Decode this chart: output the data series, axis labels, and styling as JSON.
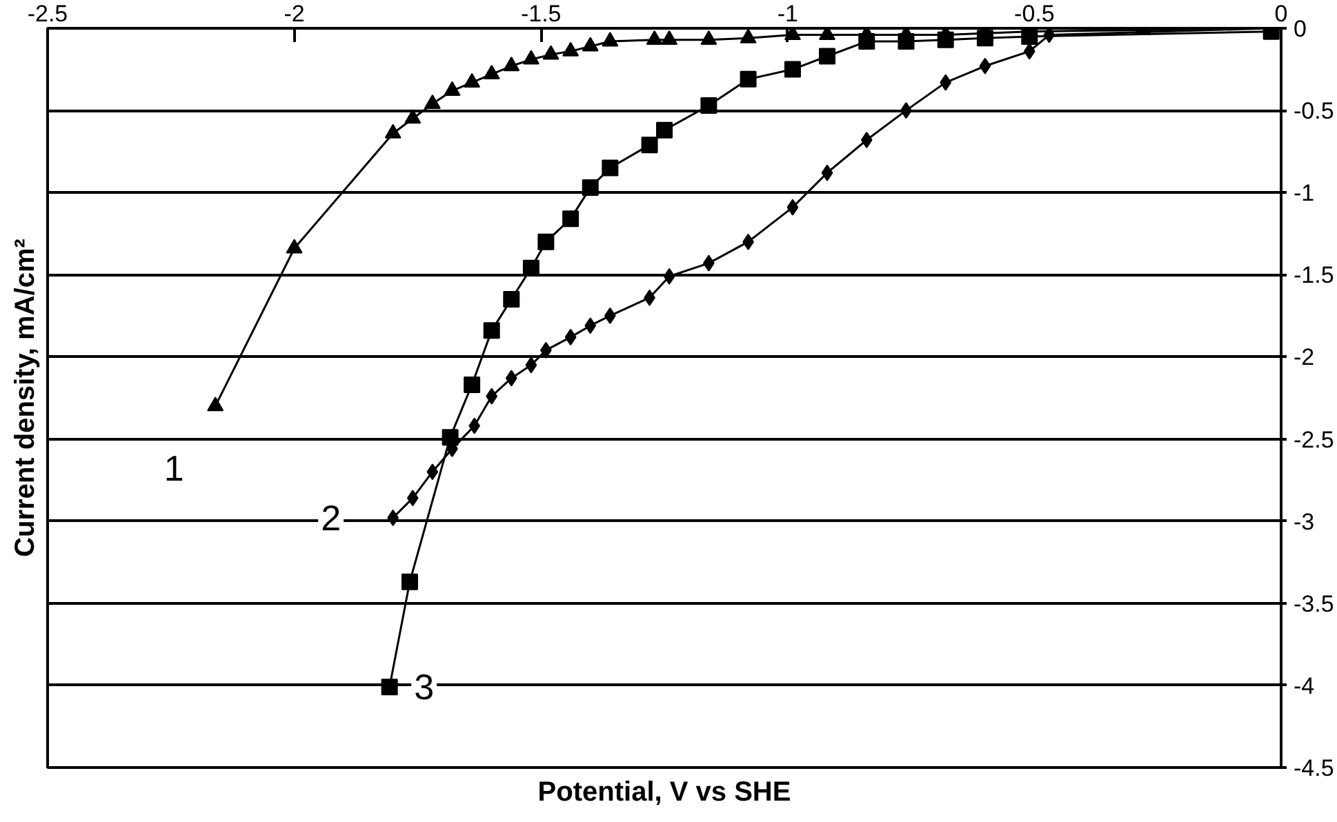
{
  "chart_data": {
    "type": "line",
    "xlabel": "Potential, V vs SHE",
    "ylabel": "Current density, mA/cm²",
    "xlim": [
      -2.5,
      0
    ],
    "xticks": [
      -2.5,
      -2,
      -1.5,
      -1,
      -0.5,
      0
    ],
    "ylim": [
      -4.5,
      0
    ],
    "yticks": [
      -4.5,
      -4,
      -3.5,
      -3,
      -2.5,
      -2,
      -1.5,
      -1,
      -0.5,
      0
    ],
    "grid": "y",
    "series": [
      {
        "name": "1",
        "color": "#000000",
        "marker": "triangle",
        "x": [
          -2.16,
          -2.0,
          -1.8,
          -1.76,
          -1.72,
          -1.68,
          -1.64,
          -1.6,
          -1.56,
          -1.52,
          -1.48,
          -1.44,
          -1.4,
          -1.36,
          -1.27,
          -1.24,
          -1.16,
          -1.08,
          -0.99,
          -0.92,
          -0.84,
          -0.76,
          -0.68,
          -0.6,
          -0.51,
          -0.28,
          -0.02
        ],
        "values": [
          -2.3,
          -1.34,
          -0.64,
          -0.55,
          -0.46,
          -0.38,
          -0.33,
          -0.28,
          -0.23,
          -0.19,
          -0.16,
          -0.14,
          -0.11,
          -0.08,
          -0.07,
          -0.07,
          -0.07,
          -0.06,
          -0.04,
          -0.04,
          -0.04,
          -0.04,
          -0.04,
          -0.03,
          -0.02,
          -0.01,
          0
        ]
      },
      {
        "name": "2",
        "color": "#000000",
        "marker": "diamond",
        "x": [
          -1.8,
          -1.76,
          -1.72,
          -1.68,
          -1.635,
          -1.6,
          -1.56,
          -1.52,
          -1.49,
          -1.44,
          -1.4,
          -1.36,
          -1.28,
          -1.24,
          -1.16,
          -1.08,
          -0.99,
          -0.92,
          -0.84,
          -0.76,
          -0.68,
          -0.6,
          -0.51,
          -0.47,
          -0.02
        ],
        "values": [
          -2.98,
          -2.86,
          -2.7,
          -2.56,
          -2.42,
          -2.24,
          -2.13,
          -2.05,
          -1.96,
          -1.88,
          -1.81,
          -1.75,
          -1.64,
          -1.51,
          -1.43,
          -1.3,
          -1.09,
          -0.88,
          -0.68,
          -0.5,
          -0.33,
          -0.23,
          -0.14,
          -0.04,
          0
        ]
      },
      {
        "name": "3",
        "color": "#000000",
        "marker": "square",
        "x": [
          -1.807,
          -1.766,
          -1.684,
          -1.64,
          -1.6,
          -1.56,
          -1.52,
          -1.49,
          -1.44,
          -1.4,
          -1.36,
          -1.28,
          -1.25,
          -1.16,
          -1.08,
          -0.99,
          -0.92,
          -0.84,
          -0.76,
          -0.68,
          -0.6,
          -0.51,
          -0.02
        ],
        "values": [
          -4.01,
          -3.37,
          -2.49,
          -2.17,
          -1.84,
          -1.65,
          -1.46,
          -1.3,
          -1.16,
          -0.97,
          -0.85,
          -0.71,
          -0.62,
          -0.47,
          -0.31,
          -0.25,
          -0.17,
          -0.08,
          -0.08,
          -0.07,
          -0.06,
          -0.05,
          -0.02
        ]
      }
    ]
  }
}
